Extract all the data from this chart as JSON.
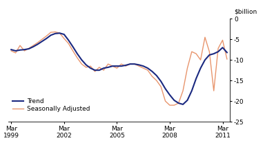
{
  "title": "$billion",
  "ylim": [
    -25,
    0
  ],
  "yticks": [
    0,
    -5,
    -10,
    -15,
    -20,
    -25
  ],
  "xlim_start": 1999.0,
  "xlim_end": 2011.6,
  "xtick_years": [
    1999,
    2002,
    2005,
    2008,
    2011
  ],
  "trend_color": "#1a2980",
  "seasonal_color": "#e8956d",
  "trend_linewidth": 1.5,
  "seasonal_linewidth": 1.0,
  "legend_labels": [
    "Trend",
    "Seasonally Adjusted"
  ],
  "background_color": "#ffffff",
  "trend_data": [
    [
      1999.17,
      -7.5
    ],
    [
      1999.42,
      -7.8
    ],
    [
      1999.67,
      -7.6
    ],
    [
      1999.92,
      -7.5
    ],
    [
      2000.17,
      -7.3
    ],
    [
      2000.42,
      -6.8
    ],
    [
      2000.67,
      -6.2
    ],
    [
      2000.92,
      -5.5
    ],
    [
      2001.17,
      -4.8
    ],
    [
      2001.42,
      -4.0
    ],
    [
      2001.67,
      -3.6
    ],
    [
      2001.92,
      -3.5
    ],
    [
      2002.17,
      -3.8
    ],
    [
      2002.42,
      -5.2
    ],
    [
      2002.67,
      -6.8
    ],
    [
      2002.92,
      -8.5
    ],
    [
      2003.17,
      -10.0
    ],
    [
      2003.42,
      -11.2
    ],
    [
      2003.67,
      -12.0
    ],
    [
      2003.92,
      -12.5
    ],
    [
      2004.17,
      -12.5
    ],
    [
      2004.42,
      -12.0
    ],
    [
      2004.67,
      -11.8
    ],
    [
      2004.92,
      -11.5
    ],
    [
      2005.17,
      -11.5
    ],
    [
      2005.42,
      -11.5
    ],
    [
      2005.67,
      -11.3
    ],
    [
      2005.92,
      -11.0
    ],
    [
      2006.17,
      -11.0
    ],
    [
      2006.42,
      -11.2
    ],
    [
      2006.67,
      -11.5
    ],
    [
      2006.92,
      -12.0
    ],
    [
      2007.17,
      -12.8
    ],
    [
      2007.42,
      -13.8
    ],
    [
      2007.67,
      -15.2
    ],
    [
      2007.92,
      -17.0
    ],
    [
      2008.17,
      -18.5
    ],
    [
      2008.42,
      -19.8
    ],
    [
      2008.67,
      -20.5
    ],
    [
      2008.92,
      -20.8
    ],
    [
      2009.17,
      -19.8
    ],
    [
      2009.42,
      -17.5
    ],
    [
      2009.67,
      -14.5
    ],
    [
      2009.92,
      -12.0
    ],
    [
      2010.17,
      -10.0
    ],
    [
      2010.42,
      -8.8
    ],
    [
      2010.67,
      -8.5
    ],
    [
      2010.92,
      -8.0
    ],
    [
      2011.17,
      -7.0
    ],
    [
      2011.42,
      -8.2
    ]
  ],
  "seasonal_data": [
    [
      1999.17,
      -7.8
    ],
    [
      1999.42,
      -8.3
    ],
    [
      1999.67,
      -6.5
    ],
    [
      1999.92,
      -7.8
    ],
    [
      2000.17,
      -7.2
    ],
    [
      2000.42,
      -6.5
    ],
    [
      2000.67,
      -5.8
    ],
    [
      2000.92,
      -5.0
    ],
    [
      2001.17,
      -4.2
    ],
    [
      2001.42,
      -3.3
    ],
    [
      2001.67,
      -3.2
    ],
    [
      2001.92,
      -3.5
    ],
    [
      2002.17,
      -4.8
    ],
    [
      2002.42,
      -6.0
    ],
    [
      2002.67,
      -7.8
    ],
    [
      2002.92,
      -9.5
    ],
    [
      2003.17,
      -11.0
    ],
    [
      2003.42,
      -11.8
    ],
    [
      2003.67,
      -11.5
    ],
    [
      2003.92,
      -12.8
    ],
    [
      2004.17,
      -11.8
    ],
    [
      2004.42,
      -12.5
    ],
    [
      2004.67,
      -11.0
    ],
    [
      2004.92,
      -11.5
    ],
    [
      2005.17,
      -12.0
    ],
    [
      2005.42,
      -11.0
    ],
    [
      2005.67,
      -11.5
    ],
    [
      2005.92,
      -11.0
    ],
    [
      2006.17,
      -11.0
    ],
    [
      2006.42,
      -11.5
    ],
    [
      2006.67,
      -12.0
    ],
    [
      2006.92,
      -12.5
    ],
    [
      2007.17,
      -14.0
    ],
    [
      2007.42,
      -15.0
    ],
    [
      2007.67,
      -16.5
    ],
    [
      2007.92,
      -20.0
    ],
    [
      2008.17,
      -21.0
    ],
    [
      2008.42,
      -21.0
    ],
    [
      2008.67,
      -20.5
    ],
    [
      2008.92,
      -17.5
    ],
    [
      2009.17,
      -12.0
    ],
    [
      2009.42,
      -8.0
    ],
    [
      2009.67,
      -8.5
    ],
    [
      2009.92,
      -10.0
    ],
    [
      2010.17,
      -4.5
    ],
    [
      2010.42,
      -8.0
    ],
    [
      2010.67,
      -17.5
    ],
    [
      2010.92,
      -7.2
    ],
    [
      2011.17,
      -5.2
    ],
    [
      2011.42,
      -9.8
    ]
  ]
}
